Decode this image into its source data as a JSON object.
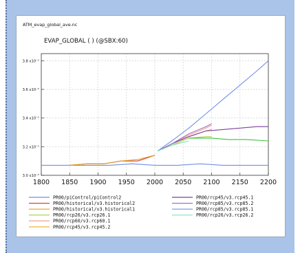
{
  "file_name": "ATM_evap_global_ave.nc",
  "chart_data": {
    "type": "line",
    "title": "EVAP_GLOBAL ( ) (@SBX:60)",
    "xlabel": "",
    "ylabel": "",
    "xlim": [
      1800,
      2200
    ],
    "ylim": [
      3.0,
      3.85
    ],
    "xticks": [
      1800,
      1850,
      1900,
      1950,
      2000,
      2050,
      2100,
      2150,
      2200
    ],
    "xtick_labels": [
      "1800",
      "1850",
      "1900",
      "1950",
      "2000",
      "2050",
      "2100",
      "2150",
      "2200"
    ],
    "yticks": [
      3.0,
      3.2,
      3.4,
      3.6,
      3.8
    ],
    "ytick_labels": [
      "3.0 x10⁻⁵",
      "3.2 x10⁻⁵",
      "3.4 x10⁻⁵",
      "3.6 x10⁻⁵",
      "3.8 x10⁻⁵"
    ],
    "grid": true,
    "legend_position": "bottom",
    "series": [
      {
        "name": "PR00/piControl/piControl2",
        "color": "#6f8fe0",
        "x": [
          1800,
          1840,
          1880,
          1920,
          1960,
          2000,
          2040,
          2080,
          2120,
          2160,
          2200
        ],
        "y": [
          3.07,
          3.07,
          3.07,
          3.07,
          3.08,
          3.07,
          3.07,
          3.08,
          3.07,
          3.07,
          3.07
        ]
      },
      {
        "name": "PR00/historical/v3.historical2",
        "color": "#d94040",
        "x": [
          1850,
          1880,
          1910,
          1940,
          1970,
          2000
        ],
        "y": [
          3.07,
          3.08,
          3.08,
          3.1,
          3.1,
          3.14
        ]
      },
      {
        "name": "PR00/historical/v3.historical1",
        "color": "#e0a020",
        "x": [
          1850,
          1880,
          1910,
          1940,
          1970,
          2000
        ],
        "y": [
          3.07,
          3.08,
          3.08,
          3.1,
          3.11,
          3.14
        ]
      },
      {
        "name": "PR00/rcp26/v3.rcp26.1",
        "color": "#9ed040",
        "x": [
          2005,
          2030,
          2060,
          2090,
          2100
        ],
        "y": [
          3.17,
          3.21,
          3.26,
          3.27,
          3.27
        ]
      },
      {
        "name": "PR00/rcp60/v3.rcp60.1",
        "color": "#f0a090",
        "x": [
          2005,
          2030,
          2060,
          2090,
          2100
        ],
        "y": [
          3.17,
          3.22,
          3.28,
          3.33,
          3.35
        ]
      },
      {
        "name": "PR00/rcp45/v3.rcp45.2",
        "color": "#f0b030",
        "x": [
          2005,
          2030,
          2060,
          2090,
          2100
        ],
        "y": [
          3.17,
          3.22,
          3.27,
          3.31,
          3.32
        ]
      },
      {
        "name": "PR00/rcp45/v3.rcp45.1",
        "color": "#7a3fa0",
        "x": [
          2005,
          2030,
          2060,
          2090,
          2120,
          2150,
          2180,
          2200
        ],
        "y": [
          3.17,
          3.22,
          3.27,
          3.31,
          3.32,
          3.33,
          3.34,
          3.34
        ]
      },
      {
        "name": "PR00/rcp85/v3.rcp85.2",
        "color": "#a070c0",
        "x": [
          2005,
          2030,
          2060,
          2090,
          2100
        ],
        "y": [
          3.17,
          3.22,
          3.29,
          3.34,
          3.36
        ]
      },
      {
        "name": "PR00/rcp85/v3.rcp85.1",
        "color": "#7090e8",
        "x": [
          2005,
          2030,
          2060,
          2090,
          2120,
          2150,
          2180,
          2200
        ],
        "y": [
          3.17,
          3.24,
          3.33,
          3.43,
          3.53,
          3.63,
          3.73,
          3.8
        ]
      },
      {
        "name": "PR00/rcp26/v3.rcp26.2",
        "color": "#80e0c0",
        "x": [
          2005,
          2030,
          2060
        ],
        "y": [
          3.17,
          3.21,
          3.24
        ]
      },
      {
        "name": "",
        "color": "#3ac23a",
        "x": [
          2060,
          2100,
          2130,
          2160,
          2200
        ],
        "y": [
          3.26,
          3.26,
          3.25,
          3.25,
          3.24
        ]
      }
    ],
    "legend_left": [
      {
        "label": "PR00/piControl/piControl2",
        "color": "#6f8fe0"
      },
      {
        "label": "PR00/historical/v3.historical2",
        "color": "#d94040"
      },
      {
        "label": "PR00/historical/v3.historical1",
        "color": "#e0a020"
      },
      {
        "label": "PR00/rcp26/v3.rcp26.1",
        "color": "#9ed040"
      },
      {
        "label": "PR00/rcp60/v3.rcp60.1",
        "color": "#f0a090"
      },
      {
        "label": "PR00/rcp45/v3.rcp45.2",
        "color": "#f0b030"
      }
    ],
    "legend_right": [
      {
        "label": "PR00/rcp45/v3.rcp45.1",
        "color": "#7a3fa0"
      },
      {
        "label": "PR00/rcp85/v3.rcp85.2",
        "color": "#a070c0"
      },
      {
        "label": "PR00/rcp85/v3.rcp85.1",
        "color": "#7090e8"
      },
      {
        "label": "PR00/rcp26/v3.rcp26.2",
        "color": "#80e0c0"
      }
    ]
  }
}
